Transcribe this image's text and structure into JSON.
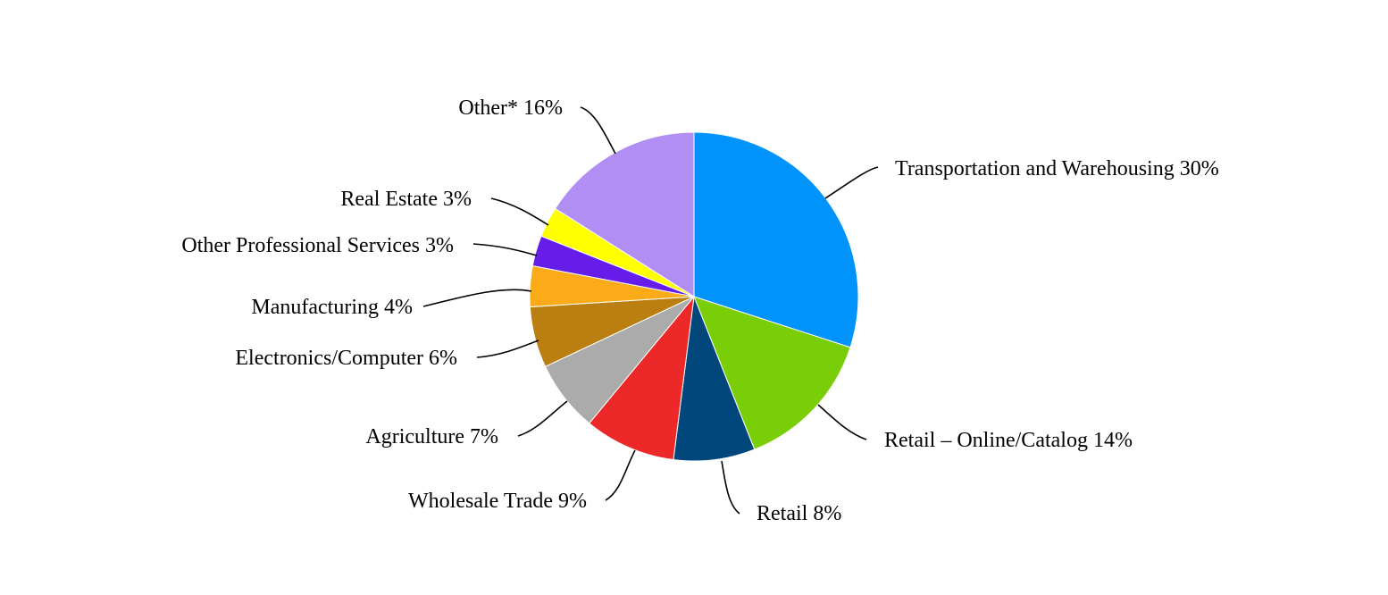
{
  "chart_data": {
    "type": "pie",
    "title": "",
    "slices": [
      {
        "category": "Transportation and Warehousing",
        "value": 30,
        "label": "Transportation and Warehousing 30%",
        "color": "#0093FB"
      },
      {
        "category": "Retail – Online/Catalog",
        "value": 14,
        "label": "Retail – Online/Catalog 14%",
        "color": "#7ACE08"
      },
      {
        "category": "Retail",
        "value": 8,
        "label": "Retail 8%",
        "color": "#02477C"
      },
      {
        "category": "Wholesale Trade",
        "value": 9,
        "label": "Wholesale Trade 9%",
        "color": "#ED2828"
      },
      {
        "category": "Agriculture",
        "value": 7,
        "label": "Agriculture 7%",
        "color": "#ABABAB"
      },
      {
        "category": "Electronics/Computer",
        "value": 6,
        "label": "Electronics/Computer 6%",
        "color": "#BA7F10"
      },
      {
        "category": "Manufacturing",
        "value": 4,
        "label": "Manufacturing 4%",
        "color": "#FBAB17"
      },
      {
        "category": "Other Professional Services",
        "value": 3,
        "label": "Other Professional Services 3%",
        "color": "#661DE9"
      },
      {
        "category": "Real Estate",
        "value": 3,
        "label": "Real Estate 3%",
        "color": "#FFFF00"
      },
      {
        "category": "Other*",
        "value": 16,
        "label": "Other* 16%",
        "color": "#B08EF3"
      }
    ],
    "start_angle_deg": 0,
    "direction": "clockwise",
    "legend": "none",
    "data_labels": "outside with leader lines"
  }
}
